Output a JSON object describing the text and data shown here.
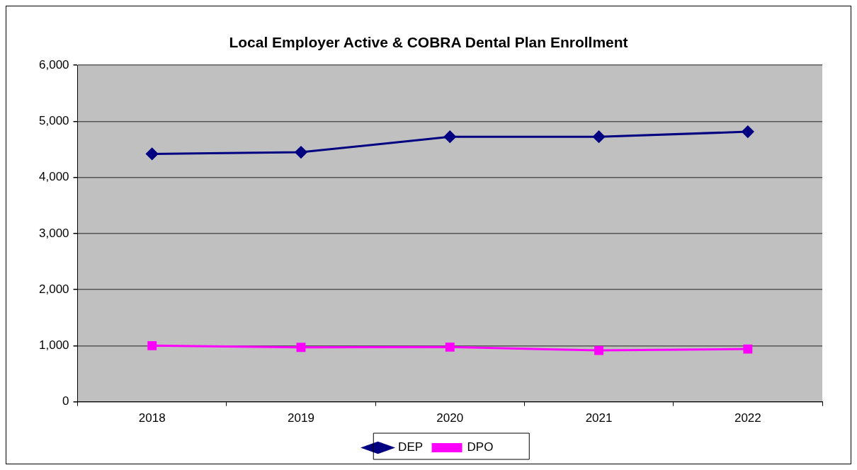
{
  "chart_data": {
    "type": "line",
    "title": "Local Employer Active & COBRA Dental Plan Enrollment",
    "categories": [
      "2018",
      "2019",
      "2020",
      "2021",
      "2022"
    ],
    "series": [
      {
        "name": "DEP",
        "color": "#000080",
        "marker": "diamond",
        "values": [
          4420,
          4450,
          4725,
          4725,
          4815
        ]
      },
      {
        "name": "DPO",
        "color": "#ff00ff",
        "marker": "square",
        "values": [
          1000,
          970,
          975,
          915,
          940
        ]
      }
    ],
    "ylim": [
      0,
      6000
    ],
    "yticks": [
      {
        "value": 0,
        "label": "0"
      },
      {
        "value": 1000,
        "label": "1,000"
      },
      {
        "value": 2000,
        "label": "2,000"
      },
      {
        "value": 3000,
        "label": "3,000"
      },
      {
        "value": 4000,
        "label": "4,000"
      },
      {
        "value": 5000,
        "label": "5,000"
      },
      {
        "value": 6000,
        "label": "6,000"
      }
    ],
    "grid": "y",
    "legend": "bottom",
    "line_style": "solid"
  }
}
